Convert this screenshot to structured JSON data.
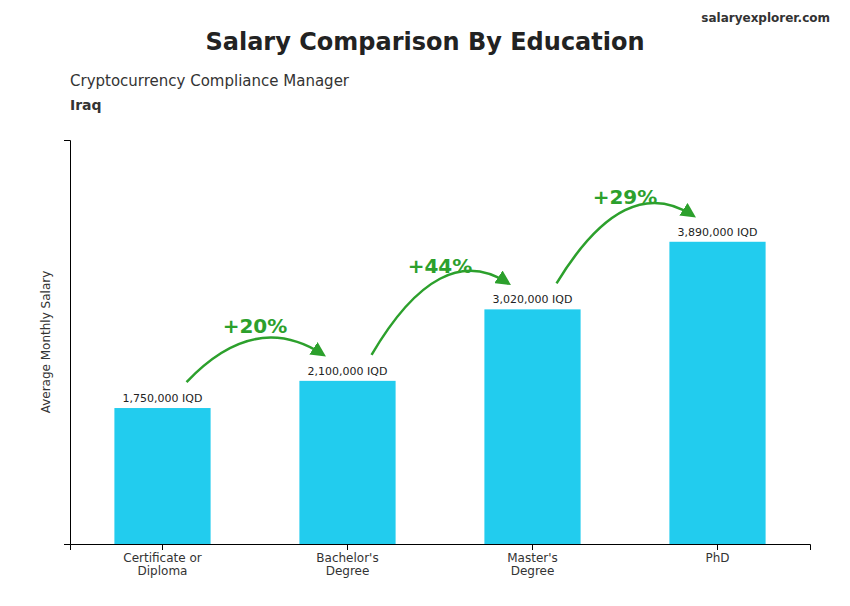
{
  "chart_data": {
    "type": "bar",
    "title": "Salary Comparison By Education",
    "subtitle": "Cryptocurrency Compliance Manager",
    "ylabel": "Average Monthly Salary",
    "categories": [
      "Certificate or\nDiploma",
      "Bachelor's\nDegree",
      "Master's\nDegree",
      "PhD"
    ],
    "values": [
      1750000,
      2100000,
      3020000,
      3890000
    ],
    "value_labels": [
      "1,750,000 IQD",
      "2,100,000 IQD",
      "3,020,000 IQD",
      "3,890,000 IQD"
    ],
    "data_labels": true,
    "color": "#22ccee",
    "ylim": [
      0,
      5200000
    ],
    "grid": false,
    "tick_labels": false,
    "annotations": [
      {
        "text": "Iraq"
      },
      {
        "text": "salaryexplorer.com"
      },
      {
        "text": "+20%",
        "from": 0,
        "to": 1
      },
      {
        "text": "+44%",
        "from": 1,
        "to": 2
      },
      {
        "text": "+29%",
        "from": 2,
        "to": 3
      }
    ]
  }
}
